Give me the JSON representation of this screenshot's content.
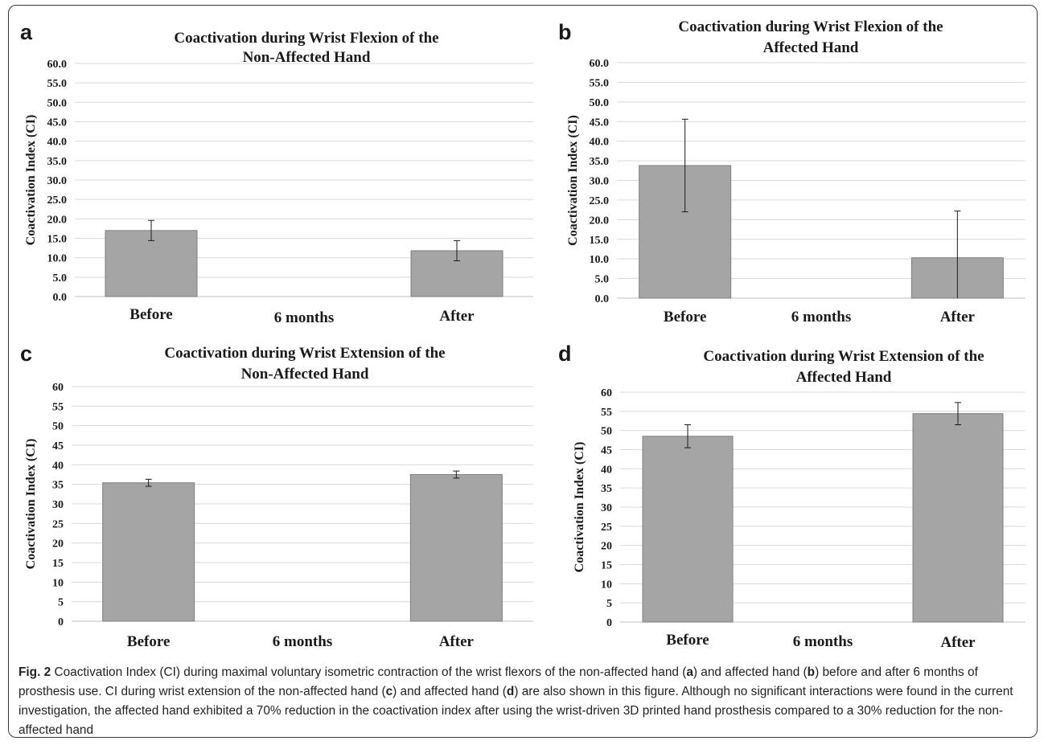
{
  "chart_data": [
    {
      "type": "bar",
      "panel": "a",
      "title_lines": [
        "Coactivation during Wrist Flexion of the",
        "Non-Affected Hand"
      ],
      "ylabel": "Coactivation Index (CI)",
      "ylim": [
        0,
        60
      ],
      "y_ticks": [
        "0.0",
        "5.0",
        "10.0",
        "15.0",
        "20.0",
        "25.0",
        "30.0",
        "35.0",
        "40.0",
        "45.0",
        "50.0",
        "55.0",
        "60.0"
      ],
      "categories": [
        "Before",
        "6 months",
        "After"
      ],
      "values": [
        17.0,
        null,
        11.8
      ],
      "errors": [
        2.6,
        null,
        2.6
      ]
    },
    {
      "type": "bar",
      "panel": "b",
      "title_lines": [
        "Coactivation during Wrist Flexion of the",
        "Affected Hand"
      ],
      "ylabel": "Coactivation Index (CI)",
      "ylim": [
        0,
        60
      ],
      "y_ticks": [
        "0.0",
        "5.0",
        "10.0",
        "15.0",
        "20.0",
        "25.0",
        "30.0",
        "35.0",
        "40.0",
        "45.0",
        "50.0",
        "55.0",
        "60.0"
      ],
      "categories": [
        "Before",
        "6 months",
        "After"
      ],
      "values": [
        33.8,
        null,
        10.3
      ],
      "errors": [
        11.8,
        null,
        11.9
      ]
    },
    {
      "type": "bar",
      "panel": "c",
      "title_lines": [
        "Coactivation during Wrist Extension of the",
        "Non-Affected Hand"
      ],
      "ylabel": "Coactivation Index (CI)",
      "ylim": [
        0,
        60
      ],
      "y_ticks": [
        "0",
        "5",
        "10",
        "15",
        "20",
        "25",
        "30",
        "35",
        "40",
        "45",
        "50",
        "55",
        "60"
      ],
      "categories": [
        "Before",
        "6 months",
        "After"
      ],
      "values": [
        35.4,
        null,
        37.5
      ],
      "errors": [
        0.9,
        null,
        0.9
      ]
    },
    {
      "type": "bar",
      "panel": "d",
      "title_lines": [
        "Coactivation during Wrist Extension of the",
        "Affected Hand"
      ],
      "ylabel": "Coactivation Index (CI)",
      "ylim": [
        0,
        60
      ],
      "y_ticks": [
        "0",
        "5",
        "10",
        "15",
        "20",
        "25",
        "30",
        "35",
        "40",
        "45",
        "50",
        "55",
        "60"
      ],
      "categories": [
        "Before",
        "6 months",
        "After"
      ],
      "values": [
        48.5,
        null,
        54.4
      ],
      "errors": [
        3.0,
        null,
        2.9
      ]
    }
  ],
  "caption": {
    "label": "Fig. 2",
    "segments": [
      {
        "t": " Coactivation Index (CI) during maximal voluntary isometric contraction of the wrist flexors of the non-affected hand (",
        "b": false
      },
      {
        "t": "a",
        "b": true
      },
      {
        "t": ") and affected hand (",
        "b": false
      },
      {
        "t": "b",
        "b": true
      },
      {
        "t": ") before and after 6 months of prosthesis use. CI during wrist extension of the non-affected hand (",
        "b": false
      },
      {
        "t": "c",
        "b": true
      },
      {
        "t": ") and affected hand (",
        "b": false
      },
      {
        "t": "d",
        "b": true
      },
      {
        "t": ") are also shown in this figure. Although no significant interactions were found in the current investigation, the affected hand exhibited a 70% reduction in the coactivation index after using the wrist-driven 3D printed hand prosthesis compared to a 30% reduction for the non-affected hand",
        "b": false
      }
    ]
  },
  "colors": {
    "bar_fill": "#a5a5a5",
    "bar_stroke": "#7f7f7f",
    "grid": "#d9d9d9",
    "text": "#1a1a1a"
  }
}
